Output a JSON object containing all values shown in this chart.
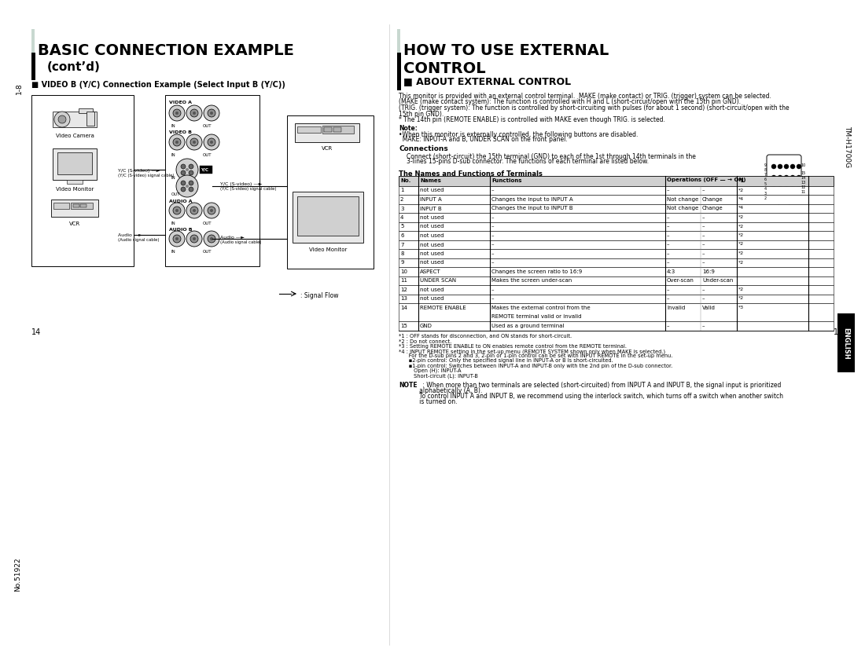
{
  "bg_color": "#ffffff",
  "left_page_num": "14",
  "right_page_num": "15",
  "side_label_left": "1-8",
  "side_label_right": "TM-H1700G",
  "left_title": "BASIC CONNECTION EXAMPLE",
  "left_subtitle": "(cont’d)",
  "left_section": "■ VIDEO B (Y/C) Connection Example (Select Input B (Y/C))",
  "right_title_line1": "HOW TO USE EXTERNAL",
  "right_title_line2": "CONTROL",
  "right_section": "ABOUT EXTERNAL CONTROL",
  "about_lines": [
    "This monitor is provided with an external control terminal.  MAKE (make contact) or TRIG. (trigger) system can be selected.",
    "(MAKE (make contact system): The function is controlled with H and L (short-circuit/open with the 15th pin GND).",
    "(TRIG. (trigger system): The function is controlled by short-circuiting with pulses (for about 1 second) (short-circuit/open with the",
    "15th pin GND).",
    "* The 14th pin (REMOTE ENABLE) is controlled with MAKE even though TRIG. is selected."
  ],
  "note_label": "Note:",
  "note_lines": [
    "•When this monitor is externally controlled, the following buttons are disabled.",
    "  MAKE: INPUT-A and B, UNDER SCAN on the front panel."
  ],
  "connections_title": "Connections",
  "connections_lines": [
    "Connect (short-circuit) the 15th terminal (GND) to each of the 1st through 14th terminals in the",
    "3-lines 15-pins D-sub connector. The functions of each terminal are listed below."
  ],
  "table_title": "The Names and Functions of Terminals",
  "table_col_headers": [
    "No.",
    "Names",
    "Functions",
    "Operations (OFF — → ON)",
    "*1"
  ],
  "table_rows": [
    [
      "1",
      "not used",
      "–",
      "–",
      "–",
      "*2"
    ],
    [
      "2",
      "INPUT A",
      "Changes the input to INPUT A",
      "Not change",
      "Change",
      "*4"
    ],
    [
      "3",
      "INPUT B",
      "Changes the input to INPUT B",
      "Not change",
      "Change",
      "*4"
    ],
    [
      "4",
      "not used",
      "–",
      "–",
      "–",
      "*2"
    ],
    [
      "5",
      "not used",
      "–",
      "–",
      "–",
      "*2"
    ],
    [
      "6",
      "not used",
      "–",
      "–",
      "–",
      "*2"
    ],
    [
      "7",
      "not used",
      "–",
      "–",
      "–",
      "*2"
    ],
    [
      "8",
      "not used",
      "–",
      "–",
      "–",
      "*2"
    ],
    [
      "9",
      "not used",
      "–",
      "–",
      "–",
      "*2"
    ],
    [
      "10",
      "ASPECT",
      "Changes the screen ratio to 16:9",
      "4:3",
      "16:9",
      ""
    ],
    [
      "11",
      "UNDER SCAN",
      "Makes the screen under-scan",
      "Over-scan",
      "Under-scan",
      ""
    ],
    [
      "12",
      "not used",
      "–",
      "–",
      "–",
      "*2"
    ],
    [
      "13",
      "not used",
      "–",
      "–",
      "–",
      "*2"
    ],
    [
      "14",
      "REMOTE ENABLE",
      "Makes the external control from the\nREMOTE terminal valid or invalid",
      "Invalid",
      "Valid",
      "*3"
    ],
    [
      "15",
      "GND",
      "Used as a ground terminal",
      "–",
      "–",
      ""
    ]
  ],
  "footnotes": [
    "*1 : OFF stands for disconnection, and ON stands for short-circuit.",
    "*2 : Do not connect.",
    "*3 : Setting REMOTE ENABLE to ON enables remote control from the REMOTE terminal.",
    "*4 : INPUT REMOTE setting in the set-up menu (REMOTE SYSTEM shown only when MAKE is selected.)",
    "      For the D-sub pins 2 and 3, 2-pin or 1-pin control can be set with INPUT REMOTE in the set-up menu.",
    "      ▪2-pin control: Only the specified signal line in INPUT-A or B is short-circuited.",
    "      ▪1-pin control: Switches between INPUT-A and INPUT-B only with the 2nd pin of the D-sub connector.",
    "         Open (H): INPUT-A",
    "         Short-circuit (L): INPUT-B"
  ],
  "note_bold": "NOTE",
  "note_text1": " : When more than two terminals are selected (short-circuited) from INPUT A and INPUT B, the signal input is prioritized",
  "note_text2": "           alphabetically (A, B).",
  "note_text3": "           To control INPUT A and INPUT B, we recommend using the interlock switch, which turns off a switch when another switch",
  "note_text4": "           is turned on.",
  "english_tab_color": "#000000",
  "english_tab_text": "ENGLISH",
  "bar_color_left": "#b0c4c4",
  "bar_color_right": "#b0c4c4"
}
